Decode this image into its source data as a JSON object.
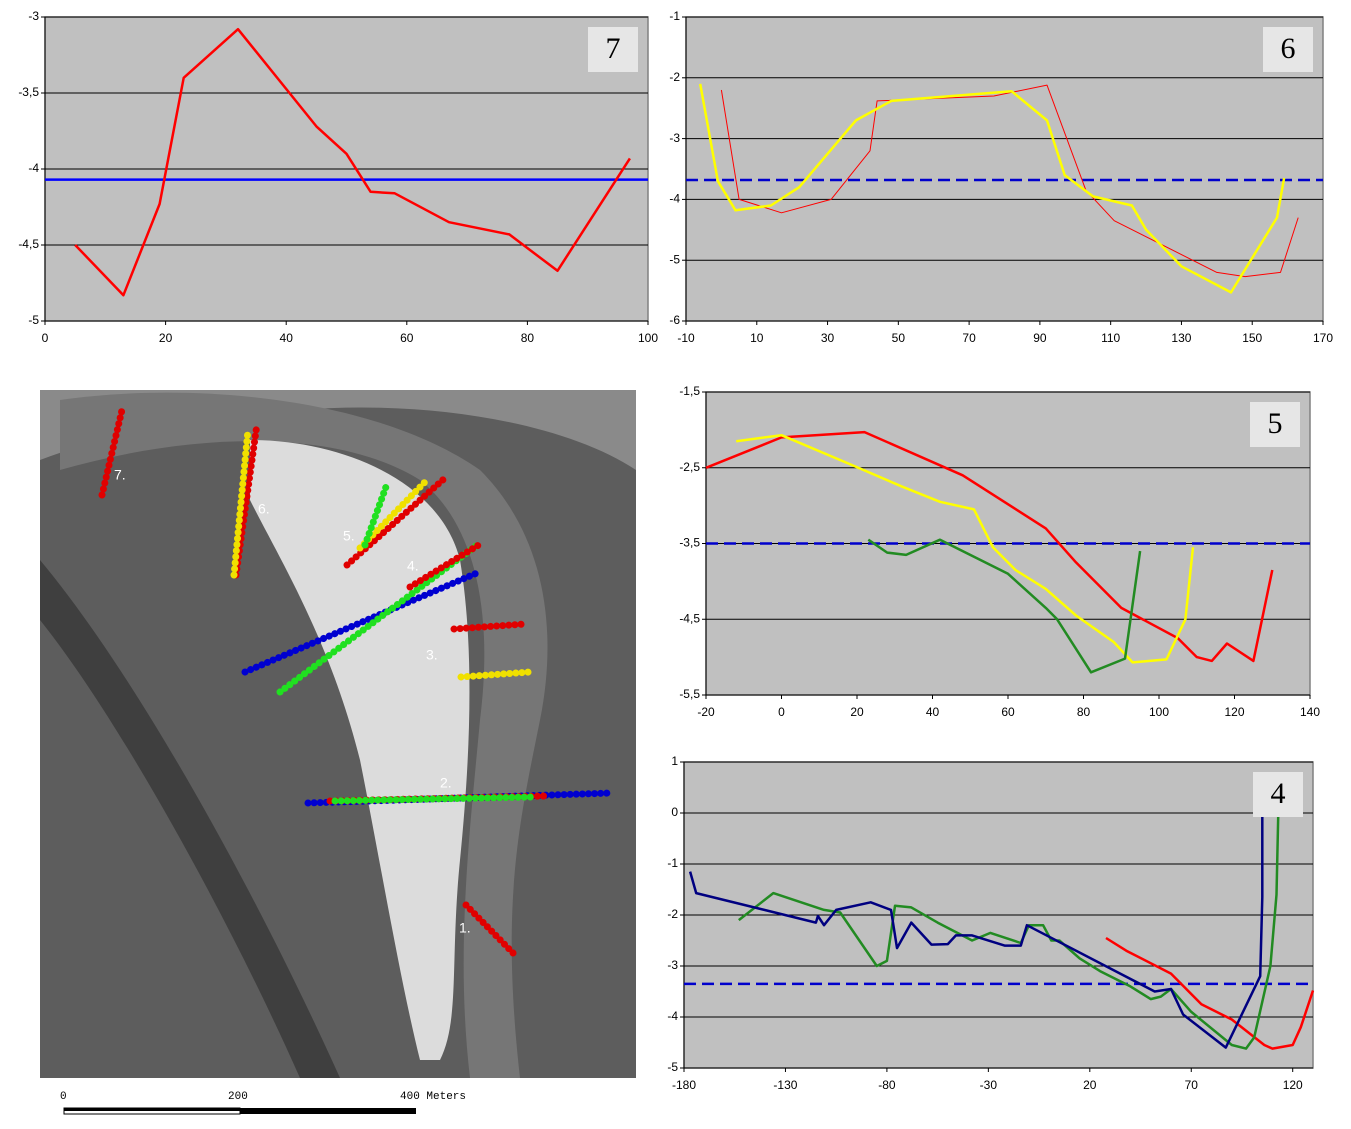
{
  "chart_data": [
    {
      "type": "line",
      "title": "7",
      "xlim": [
        0,
        100
      ],
      "ylim": [
        -5,
        -3
      ],
      "xticks": [
        0,
        20,
        40,
        60,
        80,
        100
      ],
      "yticks": [
        -3,
        {
          "value": -3.5,
          "label": "-3,5"
        },
        -4,
        {
          "value": -4.5,
          "label": "-4,5"
        },
        -5
      ],
      "grid": true,
      "hline": {
        "value": -4.07,
        "color": "#0000ff",
        "dashed": false
      },
      "series": [
        {
          "color": "#ff0000",
          "width": 2.5,
          "x": [
            5,
            13,
            19,
            23,
            32,
            45,
            50,
            54,
            58,
            67,
            77,
            85,
            97
          ],
          "values": [
            -4.5,
            -4.83,
            -4.23,
            -3.4,
            -3.08,
            -3.72,
            -3.9,
            -4.15,
            -4.16,
            -4.35,
            -4.43,
            -4.67,
            -3.93
          ]
        }
      ]
    },
    {
      "type": "line",
      "title": "6",
      "xlim": [
        -10,
        170
      ],
      "ylim": [
        -6,
        -1
      ],
      "xticks": [
        -10,
        10,
        30,
        50,
        70,
        90,
        110,
        130,
        150,
        170
      ],
      "yticks": [
        -1,
        -2,
        -3,
        -4,
        -5,
        -6
      ],
      "grid": true,
      "hline": {
        "value": -3.68,
        "color": "#0000cc",
        "dashed": true
      },
      "series": [
        {
          "color": "#ff0000",
          "width": 1,
          "x": [
            0,
            5,
            17,
            31,
            42,
            44,
            77,
            92,
            103,
            111,
            140,
            148,
            158,
            163
          ],
          "values": [
            -2.2,
            -4,
            -4.22,
            -4,
            -3.2,
            -2.38,
            -2.3,
            -2.12,
            -3.85,
            -4.35,
            -5.2,
            -5.27,
            -5.2,
            -4.3
          ]
        },
        {
          "color": "#ffff00",
          "width": 2.5,
          "x": [
            -6,
            -1,
            4,
            14,
            22,
            38,
            48,
            82,
            92,
            97,
            105,
            116,
            120,
            130,
            144,
            157,
            159
          ],
          "values": [
            -2.1,
            -3.7,
            -4.18,
            -4.1,
            -3.8,
            -2.7,
            -2.38,
            -2.22,
            -2.7,
            -3.6,
            -3.95,
            -4.1,
            -4.5,
            -5.1,
            -5.53,
            -4.3,
            -3.65
          ]
        }
      ]
    },
    {
      "type": "line",
      "title": "5",
      "xlim": [
        -20,
        140
      ],
      "ylim": [
        -5.5,
        -1.5
      ],
      "xticks": [
        -20,
        0,
        20,
        40,
        60,
        80,
        100,
        120,
        140
      ],
      "yticks": [
        {
          "value": -1.5,
          "label": "-1,5"
        },
        {
          "value": -2.5,
          "label": "-2,5"
        },
        {
          "value": -3.5,
          "label": "-3,5"
        },
        {
          "value": -4.5,
          "label": "-4,5"
        },
        {
          "value": -5.5,
          "label": "-5,5"
        }
      ],
      "grid": true,
      "hline": {
        "value": -3.5,
        "color": "#0000cc",
        "dashed": true
      },
      "series": [
        {
          "color": "#ff0000",
          "width": 2.5,
          "x": [
            -20,
            0,
            22,
            48,
            70,
            78,
            90,
            105,
            110,
            114,
            118,
            125,
            130
          ],
          "values": [
            -2.5,
            -2.1,
            -2.03,
            -2.6,
            -3.3,
            -3.75,
            -4.35,
            -4.75,
            -5,
            -5.05,
            -4.82,
            -5.05,
            -3.85
          ]
        },
        {
          "color": "#ffff00",
          "width": 2.5,
          "x": [
            -12,
            0,
            18,
            32,
            42,
            51,
            56,
            62,
            70,
            78,
            88,
            93,
            102,
            107,
            109
          ],
          "values": [
            -2.15,
            -2.07,
            -2.45,
            -2.75,
            -2.95,
            -3.05,
            -3.55,
            -3.85,
            -4.1,
            -4.45,
            -4.8,
            -5.07,
            -5.03,
            -4.5,
            -3.55
          ]
        },
        {
          "color": "#228b22",
          "width": 2.5,
          "x": [
            23,
            28,
            33,
            42,
            48,
            60,
            70,
            73,
            82,
            91,
            95
          ],
          "values": [
            -3.45,
            -3.62,
            -3.65,
            -3.45,
            -3.6,
            -3.9,
            -4.35,
            -4.5,
            -5.2,
            -5.02,
            -3.6
          ]
        }
      ]
    },
    {
      "type": "line",
      "title": "4",
      "xlim": [
        -180,
        130
      ],
      "ylim": [
        -5,
        1
      ],
      "xticks": [
        -180,
        -130,
        -80,
        -30,
        20,
        70,
        120
      ],
      "yticks": [
        1,
        0,
        -1,
        -2,
        -3,
        -4,
        -5
      ],
      "grid": true,
      "hline": {
        "value": -3.35,
        "color": "#0000cc",
        "dashed": true
      },
      "series": [
        {
          "color": "#ff0000",
          "width": 2.5,
          "x": [
            28,
            38,
            60,
            75,
            90,
            106,
            110,
            120,
            124,
            130
          ],
          "values": [
            -2.45,
            -2.7,
            -3.15,
            -3.75,
            -4.05,
            -4.55,
            -4.62,
            -4.55,
            -4.2,
            -3.48
          ]
        },
        {
          "color": "#228b22",
          "width": 2.5,
          "x": [
            -153,
            -136,
            -111,
            -103,
            -85,
            -80,
            -76,
            -68,
            -55,
            -38,
            -29,
            -14,
            -10,
            -3,
            1,
            5,
            15,
            25,
            40,
            50,
            55,
            60,
            70,
            90,
            97,
            101,
            109,
            112,
            113
          ],
          "values": [
            -2.1,
            -1.57,
            -1.9,
            -1.95,
            -3,
            -2.9,
            -1.82,
            -1.85,
            -2.15,
            -2.5,
            -2.35,
            -2.55,
            -2.2,
            -2.2,
            -2.5,
            -2.5,
            -2.85,
            -3.1,
            -3.4,
            -3.65,
            -3.6,
            -3.45,
            -3.9,
            -4.55,
            -4.62,
            -4.4,
            -3,
            -1.6,
            0.2
          ]
        },
        {
          "color": "#000080",
          "width": 2.5,
          "x": [
            -177,
            -174,
            -115,
            -114,
            -111,
            -105,
            -88,
            -78,
            -75,
            -68,
            -58,
            -50,
            -46,
            -38,
            -22,
            -14,
            -11,
            35,
            52,
            60,
            66,
            87,
            104,
            105,
            105
          ],
          "values": [
            -1.15,
            -1.57,
            -2.15,
            -2.02,
            -2.2,
            -1.9,
            -1.75,
            -1.9,
            -2.65,
            -2.15,
            -2.58,
            -2.57,
            -2.4,
            -2.4,
            -2.6,
            -2.6,
            -2.2,
            -3.15,
            -3.5,
            -3.45,
            -3.95,
            -4.6,
            -3.2,
            -1.65,
            0.2
          ]
        }
      ]
    }
  ],
  "map": {
    "labels": [
      "7.",
      "6.",
      "5.",
      "4.",
      "3.",
      "2.",
      "1."
    ],
    "scale_labels": [
      "0",
      "200",
      "400 Meters"
    ]
  }
}
